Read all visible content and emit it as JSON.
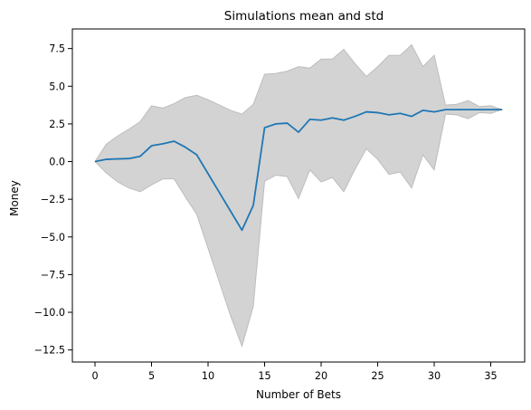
{
  "chart_data": {
    "type": "line",
    "title": "Simulations mean and std",
    "xlabel": "Number of Bets",
    "ylabel": "Money",
    "xlim": [
      -2,
      38
    ],
    "ylim": [
      -13.3,
      8.8
    ],
    "xticks": [
      0,
      5,
      10,
      15,
      20,
      25,
      30,
      35
    ],
    "yticks": [
      -12.5,
      -10.0,
      -7.5,
      -5.0,
      -2.5,
      0.0,
      2.5,
      5.0,
      7.5
    ],
    "xtick_labels": [
      "0",
      "5",
      "10",
      "15",
      "20",
      "25",
      "30",
      "35"
    ],
    "ytick_labels": [
      "−12.5",
      "−10.0",
      "−7.5",
      "−5.0",
      "−2.5",
      "0.0",
      "2.5",
      "5.0",
      "7.5"
    ],
    "grid": false,
    "colors": {
      "mean": "#1f77b4",
      "band": "#d3d3d3",
      "band_edge": "#bdbdbd"
    },
    "x": [
      0,
      1,
      2,
      3,
      4,
      5,
      6,
      7,
      8,
      9,
      10,
      11,
      12,
      13,
      14,
      15,
      16,
      17,
      18,
      19,
      20,
      21,
      22,
      23,
      24,
      25,
      26,
      27,
      28,
      29,
      30,
      31,
      32,
      33,
      34,
      35,
      36
    ],
    "series": [
      {
        "values": [
          0.0,
          0.15,
          0.18,
          0.2,
          0.35,
          1.05,
          1.18,
          1.35,
          0.95,
          0.45,
          -0.8,
          -2.05,
          -3.3,
          -4.55,
          -2.9,
          2.25,
          2.5,
          2.55,
          1.95,
          2.8,
          2.75,
          2.9,
          2.75,
          3.0,
          3.3,
          3.25,
          3.1,
          3.2,
          3.0,
          3.4,
          3.3,
          3.45,
          3.45,
          3.45,
          3.45,
          3.45,
          3.45
        ]
      }
    ],
    "band": {
      "upper": [
        0.0,
        1.15,
        1.7,
        2.15,
        2.65,
        3.7,
        3.55,
        3.85,
        4.25,
        4.4,
        4.1,
        3.75,
        3.4,
        3.15,
        3.8,
        5.8,
        5.85,
        6.0,
        6.3,
        6.2,
        6.8,
        6.8,
        7.45,
        6.5,
        5.65,
        6.3,
        7.05,
        7.05,
        7.75,
        6.3,
        7.05,
        3.75,
        3.8,
        4.05,
        3.65,
        3.7,
        3.45
      ],
      "lower": [
        0.0,
        -0.75,
        -1.35,
        -1.75,
        -2.0,
        -1.55,
        -1.15,
        -1.15,
        -2.35,
        -3.5,
        -5.75,
        -8.0,
        -10.25,
        -12.25,
        -9.6,
        -1.3,
        -0.9,
        -1.0,
        -2.45,
        -0.55,
        -1.35,
        -1.05,
        -2.0,
        -0.5,
        0.85,
        0.15,
        -0.85,
        -0.7,
        -1.75,
        0.45,
        -0.55,
        3.15,
        3.1,
        2.85,
        3.25,
        3.2,
        3.45
      ]
    }
  }
}
